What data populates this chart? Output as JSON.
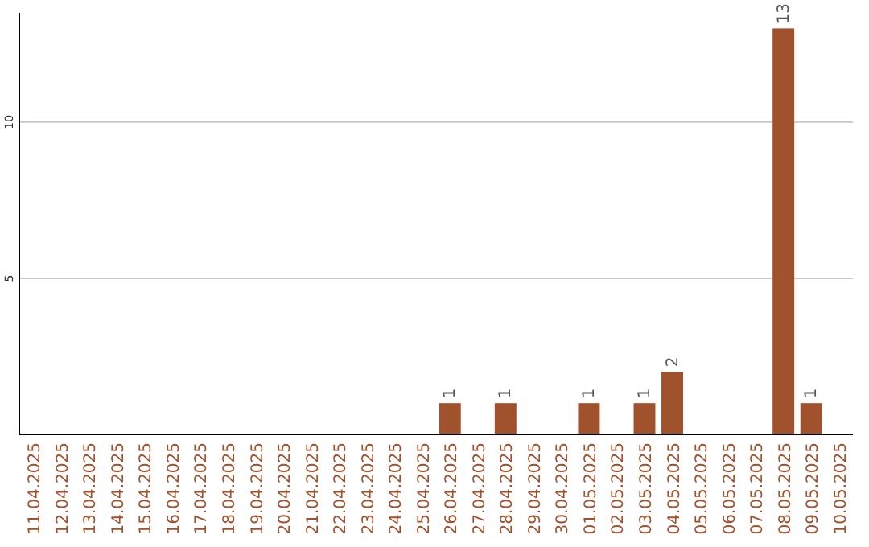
{
  "chart_data": {
    "type": "bar",
    "categories": [
      "11.04.2025",
      "12.04.2025",
      "13.04.2025",
      "14.04.2025",
      "15.04.2025",
      "16.04.2025",
      "17.04.2025",
      "18.04.2025",
      "19.04.2025",
      "20.04.2025",
      "21.04.2025",
      "22.04.2025",
      "23.04.2025",
      "24.04.2025",
      "25.04.2025",
      "26.04.2025",
      "27.04.2025",
      "28.04.2025",
      "29.04.2025",
      "30.04.2025",
      "01.05.2025",
      "02.05.2025",
      "03.05.2025",
      "04.05.2025",
      "05.05.2025",
      "06.05.2025",
      "07.05.2025",
      "08.05.2025",
      "09.05.2025",
      "10.05.2025"
    ],
    "values": [
      0,
      0,
      0,
      0,
      0,
      0,
      0,
      0,
      0,
      0,
      0,
      0,
      0,
      0,
      0,
      1,
      0,
      1,
      0,
      0,
      1,
      0,
      1,
      2,
      0,
      0,
      0,
      13,
      1,
      0
    ],
    "value_labels": [
      null,
      null,
      null,
      null,
      null,
      null,
      null,
      null,
      null,
      null,
      null,
      null,
      null,
      null,
      null,
      "1",
      null,
      "1",
      null,
      null,
      "1",
      null,
      "1",
      "2",
      null,
      null,
      null,
      "13",
      "1",
      null
    ],
    "color": "#a0522d",
    "ylim": [
      0,
      13.5
    ],
    "yticks": [
      5,
      10
    ],
    "grid": "y"
  }
}
